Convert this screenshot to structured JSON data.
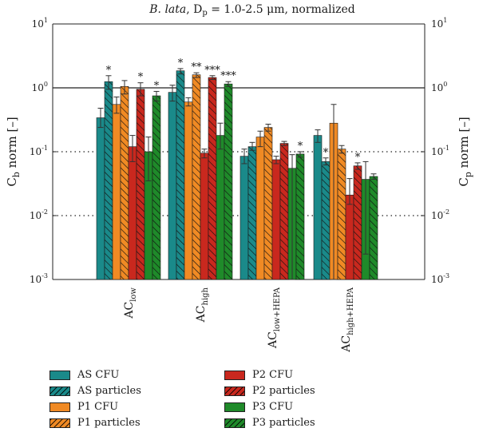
{
  "chart_data": {
    "type": "bar",
    "title_italic": "B. lata",
    "title_rest": ", D",
    "title_sub": "p",
    "title_tail": " = 1.0-2.5 μm, normalized",
    "ylabel_left_base": "C",
    "ylabel_left_sub": "b",
    "ylabel_left_rest": " norm [–]",
    "ylabel_right_base": "C",
    "ylabel_right_sub": "p",
    "ylabel_right_rest": " norm [–]",
    "y_scale": "log",
    "ylim": [
      0.001,
      10
    ],
    "yticks": [
      {
        "base": "10",
        "exp": "-3",
        "value": 0.001
      },
      {
        "base": "10",
        "exp": "-2",
        "value": 0.01
      },
      {
        "base": "10",
        "exp": "-1",
        "value": 0.1
      },
      {
        "base": "10",
        "exp": "0",
        "value": 1
      },
      {
        "base": "10",
        "exp": "1",
        "value": 10
      }
    ],
    "reference_lines": [
      {
        "value": 1,
        "style": "solid"
      },
      {
        "value": 0.1,
        "style": "dotted"
      },
      {
        "value": 0.01,
        "style": "dotted"
      }
    ],
    "categories": [
      {
        "base": "AC",
        "sub": "low"
      },
      {
        "base": "AC",
        "sub": "high"
      },
      {
        "base": "AC",
        "sub": "low+HEPA"
      },
      {
        "base": "AC",
        "sub": "high+HEPA"
      }
    ],
    "series": [
      {
        "name": "AS CFU",
        "color": "#1a8a8a",
        "hatched": false,
        "values": [
          0.34,
          0.85,
          0.085,
          0.18
        ],
        "errors": [
          [
            0.24,
            0.48
          ],
          [
            0.62,
            1.1
          ],
          [
            0.065,
            0.11
          ],
          [
            0.14,
            0.22
          ]
        ],
        "stars": [
          "",
          "",
          "",
          ""
        ]
      },
      {
        "name": "AS particles",
        "color": "#1a8a8a",
        "hatched": true,
        "values": [
          1.25,
          1.85,
          0.12,
          0.07
        ],
        "errors": [
          [
            0.95,
            1.55
          ],
          [
            1.65,
            2.0
          ],
          [
            0.105,
            0.14
          ],
          [
            0.062,
            0.08
          ]
        ],
        "stars": [
          "*",
          "*",
          "",
          "*"
        ]
      },
      {
        "name": "P1 CFU",
        "color": "#f08a24",
        "hatched": false,
        "values": [
          0.55,
          0.6,
          0.17,
          0.28
        ],
        "errors": [
          [
            0.4,
            0.72
          ],
          [
            0.52,
            0.7
          ],
          [
            0.12,
            0.21
          ],
          [
            0.001,
            0.55
          ]
        ],
        "stars": [
          "",
          "",
          "",
          ""
        ]
      },
      {
        "name": "P1 particles",
        "color": "#f08a24",
        "hatched": true,
        "values": [
          1.05,
          1.6,
          0.24,
          0.11
        ],
        "errors": [
          [
            0.8,
            1.3
          ],
          [
            1.45,
            1.72
          ],
          [
            0.21,
            0.27
          ],
          [
            0.095,
            0.125
          ]
        ],
        "stars": [
          "",
          "**",
          "",
          ""
        ]
      },
      {
        "name": "P2 CFU",
        "color": "#c9281e",
        "hatched": false,
        "values": [
          0.12,
          0.095,
          0.075,
          0.021
        ],
        "errors": [
          [
            0.07,
            0.18
          ],
          [
            0.08,
            0.11
          ],
          [
            0.065,
            0.085
          ],
          [
            0.015,
            0.038
          ]
        ],
        "stars": [
          "",
          "",
          "",
          ""
        ]
      },
      {
        "name": "P2 particles",
        "color": "#c9281e",
        "hatched": true,
        "values": [
          0.95,
          1.45,
          0.135,
          0.06
        ],
        "errors": [
          [
            0.75,
            1.2
          ],
          [
            1.35,
            1.55
          ],
          [
            0.125,
            0.145
          ],
          [
            0.053,
            0.067
          ]
        ],
        "stars": [
          "*",
          "***",
          "",
          "*"
        ]
      },
      {
        "name": "P3 CFU",
        "color": "#1f8a2a",
        "hatched": false,
        "values": [
          0.1,
          0.18,
          0.055,
          0.037
        ],
        "errors": [
          [
            0.035,
            0.17
          ],
          [
            0.11,
            0.28
          ],
          [
            0.001,
            0.09
          ],
          [
            0.0025,
            0.07
          ]
        ],
        "stars": [
          "",
          "",
          "",
          ""
        ]
      },
      {
        "name": "P3 particles",
        "color": "#1f8a2a",
        "hatched": true,
        "values": [
          0.75,
          1.15,
          0.092,
          0.041
        ],
        "errors": [
          [
            0.62,
            0.88
          ],
          [
            1.05,
            1.25
          ],
          [
            0.082,
            0.1
          ],
          [
            0.037,
            0.045
          ]
        ],
        "stars": [
          "*",
          "***",
          "*",
          ""
        ]
      }
    ],
    "grid": false,
    "legend_position": "bottom"
  }
}
